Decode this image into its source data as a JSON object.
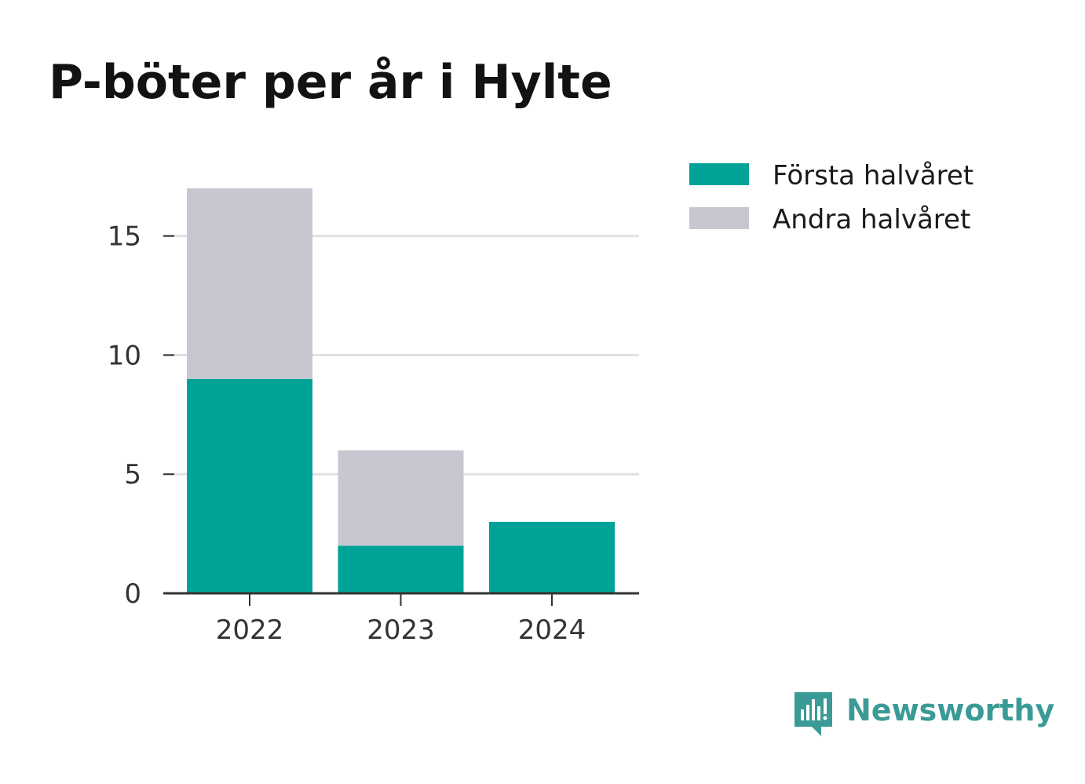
{
  "colors": {
    "first_half": "#00a398",
    "second_half": "#c8c7d1",
    "grid": "#e1e1e1",
    "axis": "#333333",
    "brand": "#3a9b96"
  },
  "chart_data": {
    "type": "bar",
    "stacked": true,
    "title": "P-böter per år i Hylte",
    "categories": [
      "2022",
      "2023",
      "2024"
    ],
    "series": [
      {
        "name": "Första halvåret",
        "values": [
          9,
          2,
          3
        ]
      },
      {
        "name": "Andra halvåret",
        "values": [
          8,
          4,
          0
        ]
      }
    ],
    "ylim": [
      0,
      17
    ],
    "yticks": [
      0,
      5,
      10,
      15
    ],
    "grid": true,
    "legend_position": "top-right"
  },
  "brand": {
    "name": "Newsworthy",
    "icon": "newsworthy-logo-icon"
  }
}
